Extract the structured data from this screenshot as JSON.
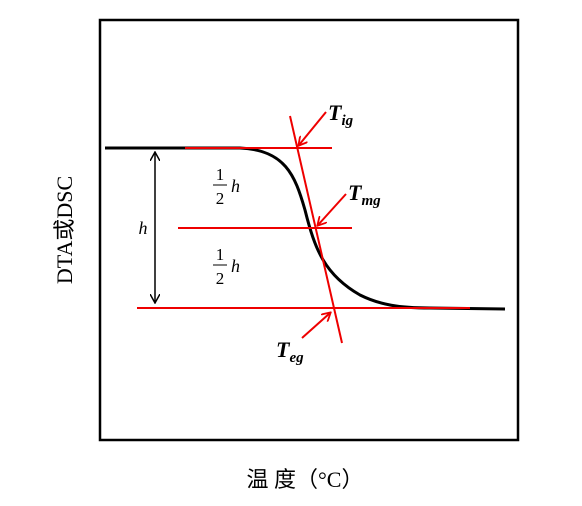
{
  "y_axis_label": "DTA或DSC",
  "x_axis_label": "温 度（°C）",
  "annotations": {
    "t_ig": {
      "symbol": "T",
      "subscript": "ig"
    },
    "t_mg": {
      "symbol": "T",
      "subscript": "mg"
    },
    "t_eg": {
      "symbol": "T",
      "subscript": "eg"
    }
  },
  "height_label": "h",
  "half_height_labels": [
    {
      "numerator": "1",
      "denominator": "2",
      "symbol": "h"
    },
    {
      "numerator": "1",
      "denominator": "2",
      "symbol": "h"
    }
  ]
}
